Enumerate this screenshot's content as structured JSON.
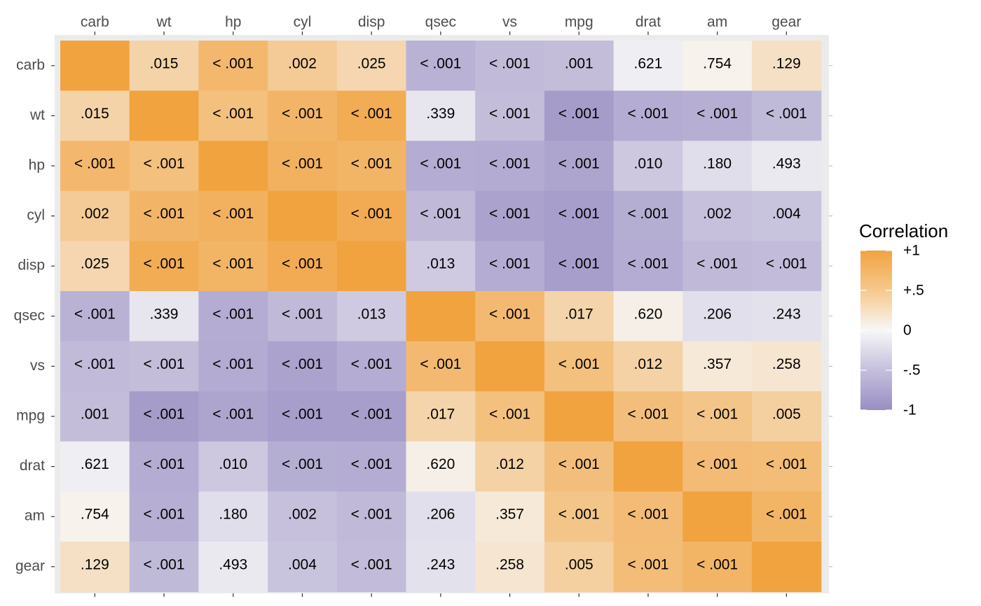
{
  "chart_data": {
    "type": "heatmap",
    "variables": [
      "carb",
      "wt",
      "hp",
      "cyl",
      "disp",
      "qsec",
      "vs",
      "mpg",
      "drat",
      "am",
      "gear"
    ],
    "x_categories": [
      "carb",
      "wt",
      "hp",
      "cyl",
      "disp",
      "qsec",
      "vs",
      "mpg",
      "drat",
      "am",
      "gear"
    ],
    "y_categories": [
      "carb",
      "wt",
      "hp",
      "cyl",
      "disp",
      "qsec",
      "vs",
      "mpg",
      "drat",
      "am",
      "gear"
    ],
    "x_axis_position": "top",
    "correlations": [
      [
        1.0,
        0.43,
        0.75,
        0.53,
        0.39,
        -0.66,
        -0.57,
        -0.55,
        -0.09,
        0.06,
        0.27
      ],
      [
        0.43,
        1.0,
        0.66,
        0.78,
        0.89,
        -0.17,
        -0.55,
        -0.87,
        -0.71,
        -0.69,
        -0.58
      ],
      [
        0.75,
        0.66,
        1.0,
        0.83,
        0.79,
        -0.71,
        -0.72,
        -0.78,
        -0.45,
        -0.24,
        -0.13
      ],
      [
        0.53,
        0.78,
        0.83,
        1.0,
        0.9,
        -0.59,
        -0.81,
        -0.85,
        -0.7,
        -0.52,
        -0.49
      ],
      [
        0.39,
        0.89,
        0.79,
        0.9,
        1.0,
        -0.43,
        -0.71,
        -0.85,
        -0.71,
        -0.59,
        -0.56
      ],
      [
        -0.66,
        -0.17,
        -0.71,
        -0.59,
        -0.43,
        1.0,
        0.74,
        0.42,
        0.09,
        -0.23,
        -0.21
      ],
      [
        -0.57,
        -0.55,
        -0.72,
        -0.81,
        -0.71,
        0.74,
        1.0,
        0.66,
        0.44,
        0.17,
        0.21
      ],
      [
        -0.55,
        -0.87,
        -0.78,
        -0.85,
        -0.85,
        0.42,
        0.66,
        1.0,
        0.68,
        0.6,
        0.48
      ],
      [
        -0.09,
        -0.71,
        -0.45,
        -0.7,
        -0.71,
        0.09,
        0.44,
        0.68,
        1.0,
        0.71,
        0.7
      ],
      [
        0.06,
        -0.69,
        -0.24,
        -0.52,
        -0.59,
        -0.23,
        0.17,
        0.6,
        0.71,
        1.0,
        0.79
      ],
      [
        0.27,
        -0.58,
        -0.13,
        -0.49,
        -0.56,
        -0.21,
        0.21,
        0.48,
        0.7,
        0.79,
        1.0
      ]
    ],
    "p_value_labels": [
      [
        "",
        ".015",
        "< .001",
        ".002",
        ".025",
        "< .001",
        "< .001",
        ".001",
        ".621",
        ".754",
        ".129"
      ],
      [
        ".015",
        "",
        "< .001",
        "< .001",
        "< .001",
        ".339",
        "< .001",
        "< .001",
        "< .001",
        "< .001",
        "< .001"
      ],
      [
        "< .001",
        "< .001",
        "",
        "< .001",
        "< .001",
        "< .001",
        "< .001",
        "< .001",
        ".010",
        ".180",
        ".493"
      ],
      [
        ".002",
        "< .001",
        "< .001",
        "",
        "< .001",
        "< .001",
        "< .001",
        "< .001",
        "< .001",
        ".002",
        ".004"
      ],
      [
        ".025",
        "< .001",
        "< .001",
        "< .001",
        "",
        ".013",
        "< .001",
        "< .001",
        "< .001",
        "< .001",
        "< .001"
      ],
      [
        "< .001",
        ".339",
        "< .001",
        "< .001",
        ".013",
        "",
        "< .001",
        ".017",
        ".620",
        ".206",
        ".243"
      ],
      [
        "< .001",
        "< .001",
        "< .001",
        "< .001",
        "< .001",
        "< .001",
        "",
        "< .001",
        ".012",
        ".357",
        ".258"
      ],
      [
        ".001",
        "< .001",
        "< .001",
        "< .001",
        "< .001",
        ".017",
        "< .001",
        "",
        "< .001",
        "< .001",
        ".005"
      ],
      [
        ".621",
        "< .001",
        ".010",
        "< .001",
        "< .001",
        ".620",
        ".012",
        "< .001",
        "",
        "< .001",
        "< .001"
      ],
      [
        ".754",
        "< .001",
        ".180",
        ".002",
        "< .001",
        ".206",
        ".357",
        "< .001",
        "< .001",
        "",
        "< .001"
      ],
      [
        ".129",
        "< .001",
        ".493",
        ".004",
        "< .001",
        ".243",
        ".258",
        ".005",
        "< .001",
        "< .001",
        ""
      ]
    ],
    "legend": {
      "title": "Correlation",
      "range": [
        -1,
        1
      ],
      "breaks": [
        1,
        0.5,
        0,
        -0.5,
        -1
      ],
      "labels": [
        "+1",
        "+.5",
        "0",
        "-.5",
        "-1"
      ],
      "placement": "right"
    },
    "colors": {
      "positive": "#f1a340",
      "neutral": "#f7f7f7",
      "negative": "#998ec3",
      "panel_background": "#ebebeb"
    }
  }
}
